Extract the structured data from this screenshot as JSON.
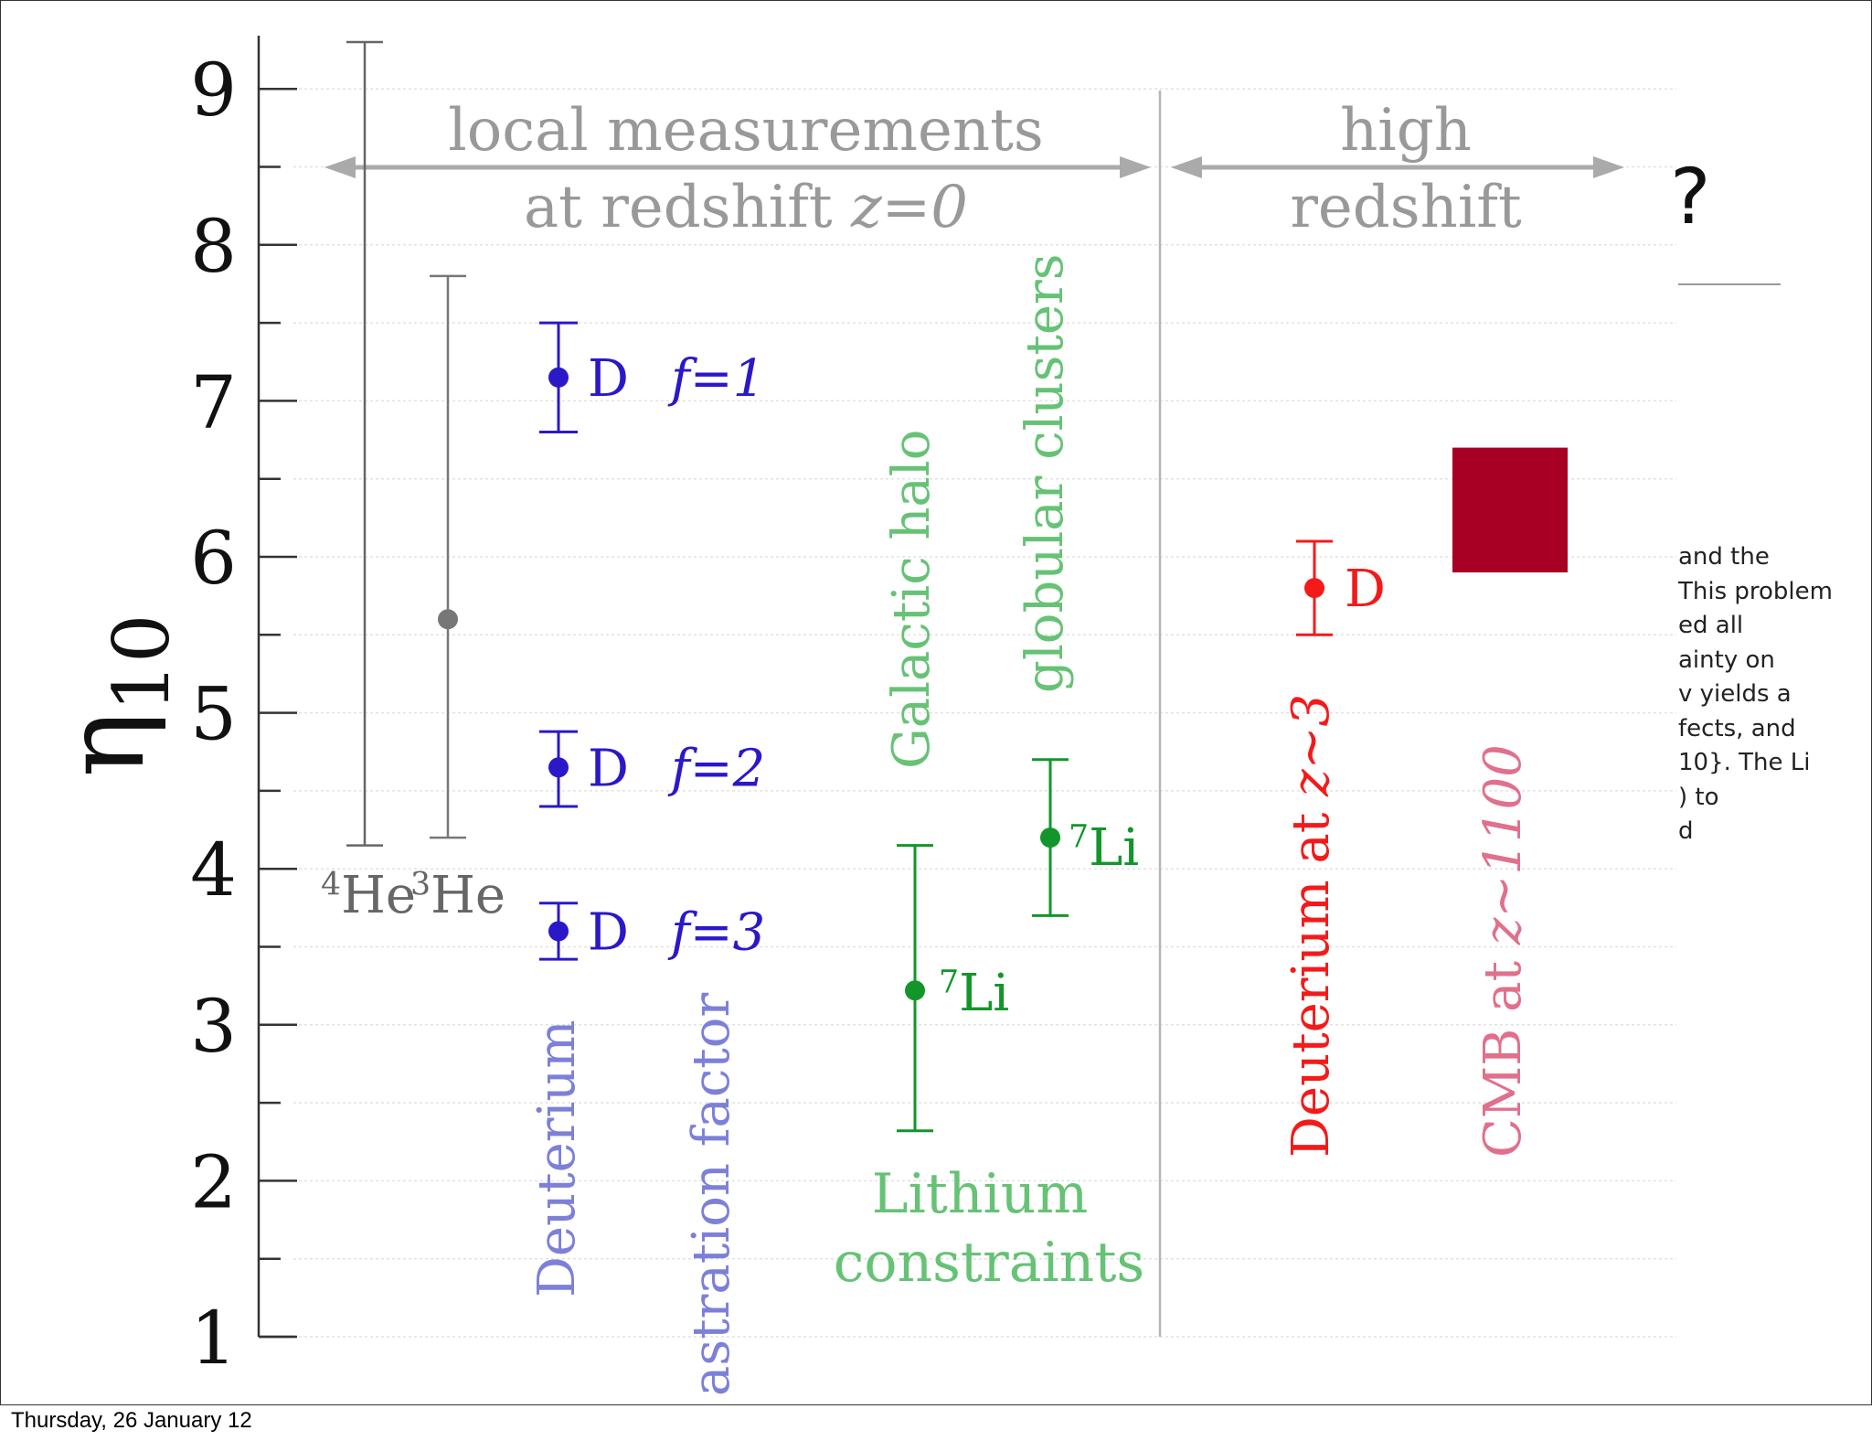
{
  "chart_data": {
    "type": "scatter",
    "ylabel": "η",
    "ylabel_sub": "10",
    "ylim": [
      1,
      9.5
    ],
    "yticks": [
      1,
      2,
      3,
      4,
      5,
      6,
      7,
      8,
      9
    ],
    "grid": true,
    "regions": [
      {
        "id": "local",
        "lines": [
          "local measurements",
          "at redshift "
        ],
        "italic_tail": "z=0"
      },
      {
        "id": "high",
        "lines": [
          "high",
          "redshift"
        ]
      }
    ],
    "helium": [
      {
        "sup": "4",
        "label": "He",
        "low": 4.15,
        "high": 9.3,
        "value": null
      },
      {
        "sup": "3",
        "label": "He",
        "low": 4.2,
        "high": 7.8,
        "value": 5.6
      }
    ],
    "deuterium_local": [
      {
        "label": "D",
        "f": "f=1",
        "value": 7.15,
        "low": 6.8,
        "high": 7.5
      },
      {
        "label": "D",
        "f": "f=2",
        "value": 4.65,
        "low": 4.4,
        "high": 4.88
      },
      {
        "label": "D",
        "f": "f=3",
        "value": 3.6,
        "low": 3.42,
        "high": 3.78
      }
    ],
    "lithium": [
      {
        "sup": "7",
        "label": "Li",
        "value": 3.22,
        "low": 2.32,
        "high": 4.15
      },
      {
        "sup": "7",
        "label": "Li",
        "value": 4.2,
        "low": 3.7,
        "high": 4.7
      }
    ],
    "deuterium_high": {
      "label": "D",
      "value": 5.8,
      "low": 5.5,
      "high": 6.1
    },
    "cmb_box": {
      "low": 5.9,
      "high": 6.7
    },
    "vertical_labels": {
      "deuterium": "Deuterium",
      "astration": "astration factor",
      "galactic_halo": "Galactic halo",
      "globular_clusters": "globular clusters",
      "deut_at": "Deuterium at ",
      "deut_at_italic": "z~3",
      "cmb_at": "CMB at ",
      "cmb_at_italic": "z~1100"
    },
    "lithium_caption": [
      "Lithium",
      "constraints"
    ]
  },
  "colors": {
    "blue": "#2b18c9",
    "blue_light": "#7d80d8",
    "green": "#12962a",
    "green_light": "#66c275",
    "red": "#f41a1a",
    "pink": "#e0708c",
    "crimson": "#a80024",
    "gray": "#777777"
  },
  "slide": {
    "title_fragment": "?",
    "right_text": [
      "and the",
      "This problem",
      "ed all",
      "ainty on",
      "v yields a",
      "fects, and",
      "10}. The Li",
      ") to",
      "d"
    ],
    "footer": "Thursday, 26 January 12"
  }
}
